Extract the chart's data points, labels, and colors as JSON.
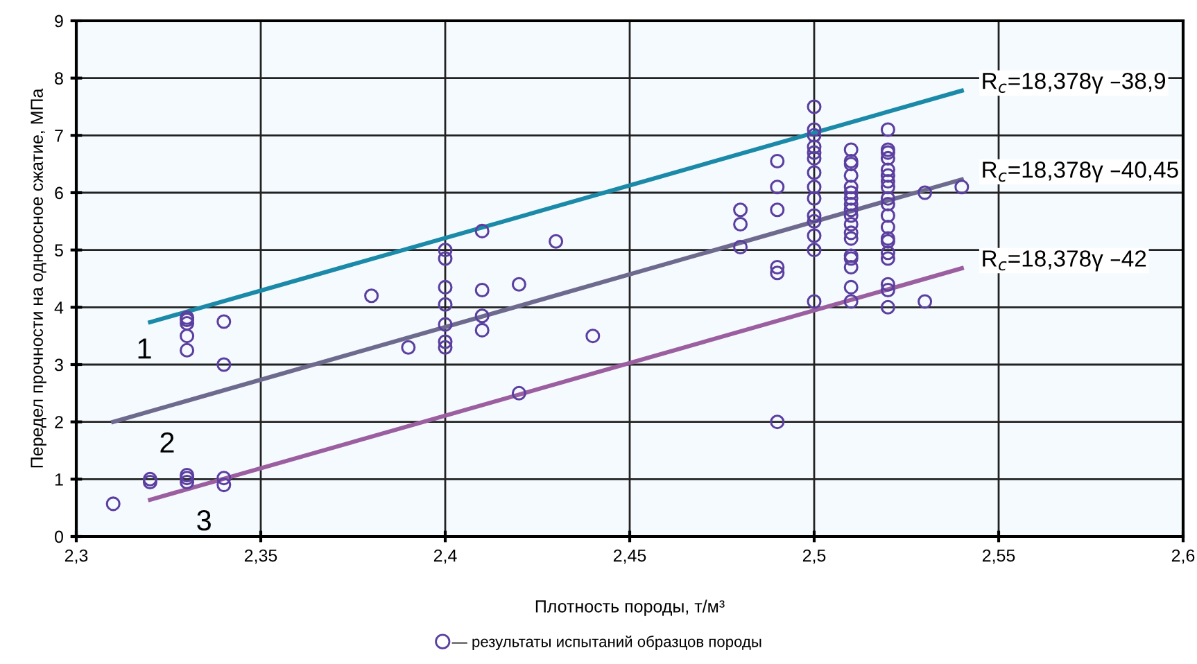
{
  "chart_data": {
    "type": "scatter",
    "xlabel": "Плотность породы, т/м³",
    "ylabel": "Передел прочности на одноосное сжатие, МПа",
    "xlim": [
      2.3,
      2.6
    ],
    "ylim": [
      0,
      9
    ],
    "xticks": [
      {
        "value": 2.3,
        "label": "2,3"
      },
      {
        "value": 2.35,
        "label": "2,35"
      },
      {
        "value": 2.4,
        "label": "2,4"
      },
      {
        "value": 2.45,
        "label": "2,45"
      },
      {
        "value": 2.5,
        "label": "2,5"
      },
      {
        "value": 2.55,
        "label": "2,55"
      },
      {
        "value": 2.6,
        "label": "2,6"
      }
    ],
    "yticks": [
      0,
      1,
      2,
      3,
      4,
      5,
      6,
      7,
      8,
      9
    ],
    "grid": true,
    "legend": "bottom",
    "marker": "circle",
    "series": [
      {
        "name": "— результаты испытаний образцов породы",
        "color": "#5b3fa0",
        "x": [
          2.31,
          2.32,
          2.32,
          2.33,
          2.33,
          2.33,
          2.33,
          2.33,
          2.33,
          2.33,
          2.33,
          2.34,
          2.34,
          2.34,
          2.34,
          2.38,
          2.39,
          2.4,
          2.4,
          2.4,
          2.4,
          2.4,
          2.4,
          2.4,
          2.41,
          2.41,
          2.41,
          2.41,
          2.42,
          2.42,
          2.43,
          2.44,
          2.48,
          2.48,
          2.48,
          2.49,
          2.49,
          2.49,
          2.49,
          2.49,
          2.49,
          2.5,
          2.5,
          2.5,
          2.5,
          2.5,
          2.5,
          2.5,
          2.5,
          2.5,
          2.5,
          2.5,
          2.5,
          2.5,
          2.5,
          2.51,
          2.51,
          2.51,
          2.51,
          2.51,
          2.51,
          2.51,
          2.51,
          2.51,
          2.51,
          2.51,
          2.51,
          2.51,
          2.51,
          2.51,
          2.51,
          2.51,
          2.51,
          2.52,
          2.52,
          2.52,
          2.52,
          2.52,
          2.52,
          2.52,
          2.52,
          2.52,
          2.52,
          2.52,
          2.52,
          2.52,
          2.52,
          2.52,
          2.52,
          2.52,
          2.52,
          2.52,
          2.53,
          2.53,
          2.54
        ],
        "values": [
          0.57,
          1.0,
          0.95,
          3.82,
          3.78,
          3.72,
          3.5,
          3.25,
          1.07,
          1.02,
          0.95,
          3.75,
          3.0,
          1.02,
          0.9,
          4.2,
          3.3,
          5.0,
          4.85,
          4.35,
          4.05,
          3.7,
          3.4,
          3.3,
          5.33,
          4.3,
          3.85,
          3.6,
          4.4,
          2.5,
          5.15,
          3.5,
          5.7,
          5.45,
          5.05,
          6.55,
          6.1,
          5.7,
          4.7,
          4.6,
          2.0,
          7.5,
          7.1,
          7.0,
          6.8,
          6.7,
          6.6,
          6.35,
          6.1,
          5.9,
          5.6,
          5.5,
          5.25,
          5.0,
          4.1,
          6.75,
          6.55,
          6.5,
          6.3,
          6.1,
          6.0,
          5.9,
          5.8,
          5.7,
          5.6,
          5.45,
          5.3,
          5.2,
          4.9,
          4.85,
          4.7,
          4.35,
          4.1,
          7.1,
          6.75,
          6.7,
          6.6,
          6.4,
          6.3,
          6.2,
          6.1,
          5.9,
          5.8,
          5.6,
          5.4,
          5.2,
          5.15,
          4.95,
          4.85,
          4.4,
          4.3,
          4.0,
          6.0,
          4.1,
          6.1
        ]
      },
      {
        "type": "line",
        "color": "#1a8aa8",
        "marker": "none",
        "x": [
          2.32,
          2.54
        ],
        "values": [
          3.74,
          7.78
        ]
      },
      {
        "type": "line",
        "color": "#6e6a8e",
        "marker": "none",
        "x": [
          2.31,
          2.54
        ],
        "values": [
          2.0,
          6.23
        ]
      },
      {
        "type": "line",
        "color": "#9b5fa0",
        "marker": "none",
        "x": [
          2.32,
          2.54
        ],
        "values": [
          0.64,
          4.68
        ]
      }
    ],
    "annotations": [
      "R$_{c}$=18,378γ –38,9",
      "R$_{c}$=18,378γ –40,45",
      "R$_{c}$=18,378γ –42",
      "1",
      "2",
      "3"
    ]
  }
}
